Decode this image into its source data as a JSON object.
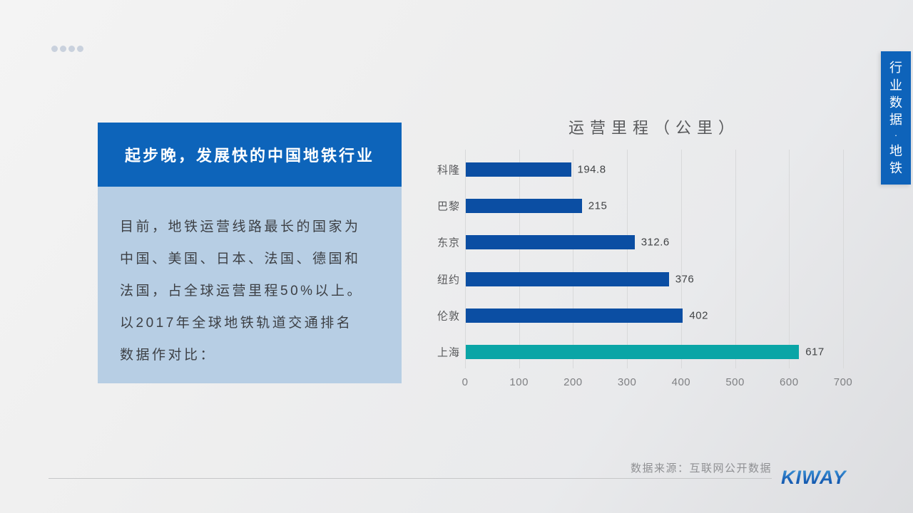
{
  "slide": {
    "title_box": {
      "title": "起步晚，发展快的中国地铁行业"
    },
    "intro": {
      "lines": [
        "目前，地铁运营线路最长的国家为",
        "中国、美国、日本、法国、德国和",
        "法国，占全球运营里程50%以上。",
        "以2017年全球地铁轨道交通排名",
        "数据作对比："
      ]
    },
    "side_ribbon": {
      "text": "行业数据·地铁"
    },
    "footer": {
      "source": "数据来源：互联网公开数据",
      "logo": "KIWAY"
    },
    "colors": {
      "title_box_bg": "#0d64ba",
      "intro_box_bg": "#b7cee4",
      "ribbon_bg": "#0e63ba",
      "logo_blue": "#1458ab"
    }
  },
  "decor": {
    "dots_count": 4,
    "dot_color": "#c9d1dd"
  },
  "chart_data": {
    "type": "bar",
    "orientation": "horizontal",
    "title": "运营里程（公里）",
    "categories": [
      "科隆",
      "巴黎",
      "东京",
      "纽约",
      "伦敦",
      "上海"
    ],
    "values": [
      194.8,
      215,
      312.6,
      376,
      402,
      617
    ],
    "xlim": [
      0,
      700
    ],
    "x_ticks": [
      0,
      100,
      200,
      300,
      400,
      500,
      600,
      700
    ],
    "grid": true,
    "legend": "none",
    "bar_color_default": "#0b4ea3",
    "bar_color_highlight": "#0aa5a6",
    "highlight_index": 5,
    "highlight_category": "上海"
  }
}
